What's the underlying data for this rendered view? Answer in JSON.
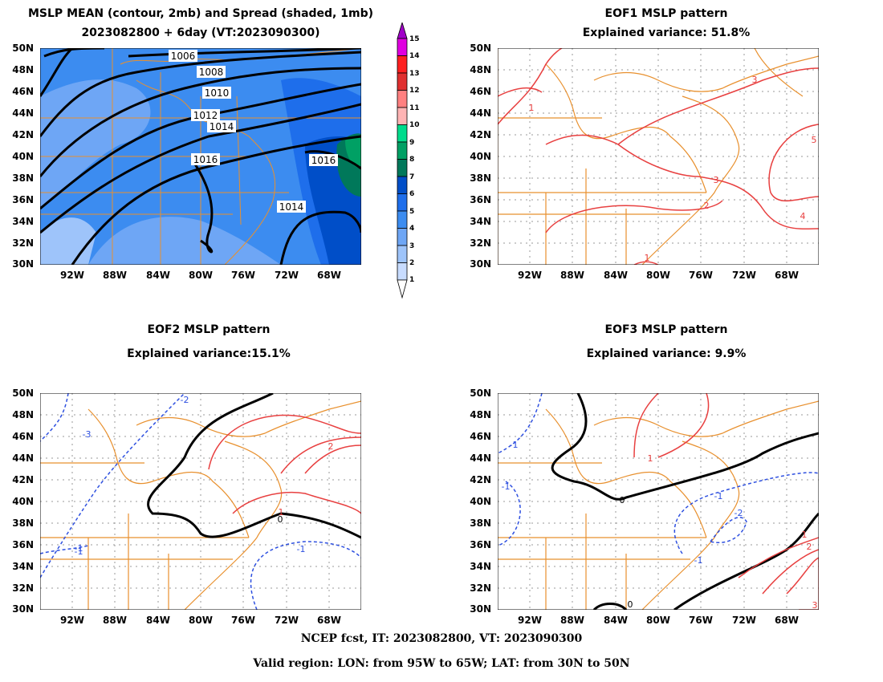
{
  "panels": {
    "p1": {
      "title1": "MSLP MEAN (contour, 2mb) and Spread (shaded, 1mb)",
      "title2": "2023082800 + 6day (VT:2023090300)"
    },
    "p2": {
      "title1": "EOF1 MSLP pattern",
      "title2": "Explained variance: 51.8%"
    },
    "p3": {
      "title1": "EOF2 MSLP pattern",
      "title2": "Explained variance:15.1%"
    },
    "p4": {
      "title1": "EOF3 MSLP pattern",
      "title2": "Explained variance: 9.9%"
    }
  },
  "lat_labels": [
    "50N",
    "48N",
    "46N",
    "44N",
    "42N",
    "40N",
    "38N",
    "36N",
    "34N",
    "32N",
    "30N"
  ],
  "lon_labels": [
    "92W",
    "88W",
    "84W",
    "80W",
    "76W",
    "72W",
    "68W"
  ],
  "mean_contour_labels": [
    "1006",
    "1008",
    "1010",
    "1012",
    "1014",
    "1016",
    "1016",
    "1014"
  ],
  "eof1_labels": [
    "1",
    "3",
    "5",
    "3",
    "2",
    "4",
    "1"
  ],
  "eof2_labels": [
    "-3",
    "-2",
    "-1",
    "-1",
    "1",
    "2",
    "0",
    "-1"
  ],
  "eof3_labels": [
    "-1",
    "-1",
    "1",
    "0",
    "-1",
    "-2",
    "-1",
    "1",
    "2",
    "3",
    "0"
  ],
  "colorbar": {
    "levels": [
      "15",
      "14",
      "13",
      "12",
      "11",
      "10",
      "9",
      "8",
      "7",
      "6",
      "5",
      "4",
      "3",
      "2",
      "1"
    ],
    "colors": [
      "#a000c8",
      "#e000e0",
      "#ff2020",
      "#e03030",
      "#ff8080",
      "#ffb4b4",
      "#00dc8c",
      "#00a064",
      "#00785a",
      "#004ec8",
      "#1e6eeb",
      "#3c8cf0",
      "#6ea6f5",
      "#9ec4fa",
      "#c8dcff"
    ]
  },
  "colors": {
    "land": "#e8902e",
    "positive": "#e84040",
    "negative": "#2e50e0",
    "zero": "#000000",
    "spread_bg": "#4a8eea"
  },
  "footer": {
    "line1": "NCEP fcst, IT: 2023082800, VT: 2023090300",
    "line2": "Valid region: LON: from 95W to 65W; LAT: from 30N to 50N"
  }
}
